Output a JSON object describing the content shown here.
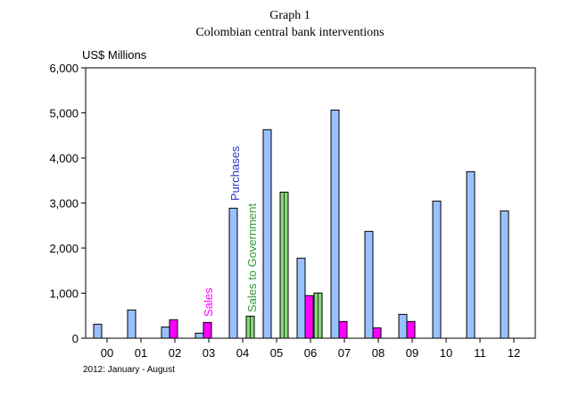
{
  "chart_data": {
    "type": "bar",
    "title": "Graph 1",
    "subtitle": "Colombian central bank interventions",
    "ylabel": "US$ Millions",
    "xlabel": "",
    "footnote": "2012: January - August",
    "ylim": [
      0,
      6000
    ],
    "yticks": [
      "0",
      "1,000",
      "2,000",
      "3,000",
      "4,000",
      "5,000",
      "6,000"
    ],
    "ytick_values": [
      0,
      1000,
      2000,
      3000,
      4000,
      5000,
      6000
    ],
    "categories": [
      "00",
      "01",
      "02",
      "03",
      "04",
      "05",
      "06",
      "07",
      "08",
      "09",
      "10",
      "11",
      "12"
    ],
    "grid": false,
    "series": [
      {
        "name": "Purchases",
        "color": "#99c0ff",
        "label_color": "#3333cc",
        "values": [
          310,
          627,
          250,
          112,
          2885,
          4627,
          1776,
          5063,
          2370,
          528,
          3043,
          3696,
          2825
        ]
      },
      {
        "name": "Sales",
        "color": "#ff00ff",
        "label_color": "#ff00ff",
        "values": [
          0,
          0,
          410,
          350,
          0,
          0,
          944,
          370,
          231,
          370,
          0,
          0,
          0
        ]
      },
      {
        "name": "Sales to Government",
        "color": "#88d878",
        "label_color": "#339933",
        "values": [
          0,
          0,
          0,
          0,
          488,
          3241,
          1003,
          0,
          0,
          0,
          0,
          0,
          0
        ]
      }
    ]
  }
}
